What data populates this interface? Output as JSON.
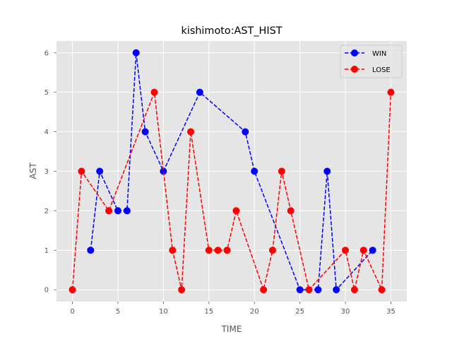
{
  "chart_data": {
    "type": "line",
    "title": "kishimoto:AST_HIST",
    "xlabel": "TIME",
    "ylabel": "AST",
    "xlim": [
      -1.75,
      36.75
    ],
    "ylim": [
      -0.3,
      6.3
    ],
    "xticks": [
      0,
      5,
      10,
      15,
      20,
      25,
      30,
      35
    ],
    "yticks": [
      0,
      1,
      2,
      3,
      4,
      5,
      6
    ],
    "grid": true,
    "legend_position": "top-right",
    "style": "ggplot",
    "series": [
      {
        "name": "WIN",
        "color": "#0000ff",
        "linestyle": "dashed",
        "marker": "circle",
        "x": [
          2,
          3,
          5,
          6,
          7,
          8,
          10,
          14,
          19,
          20,
          25,
          27,
          28,
          29,
          33
        ],
        "y": [
          1,
          3,
          2,
          2,
          6,
          4,
          3,
          5,
          4,
          3,
          0,
          0,
          3,
          0,
          1
        ]
      },
      {
        "name": "LOSE",
        "color": "#ff0000",
        "linestyle": "dashed",
        "marker": "circle",
        "x": [
          0,
          1,
          4,
          9,
          11,
          12,
          13,
          15,
          16,
          17,
          18,
          21,
          22,
          23,
          24,
          26,
          30,
          31,
          32,
          34,
          35
        ],
        "y": [
          0,
          3,
          2,
          5,
          1,
          0,
          4,
          1,
          1,
          1,
          2,
          0,
          1,
          3,
          2,
          0,
          1,
          0,
          1,
          0,
          5
        ]
      }
    ]
  }
}
